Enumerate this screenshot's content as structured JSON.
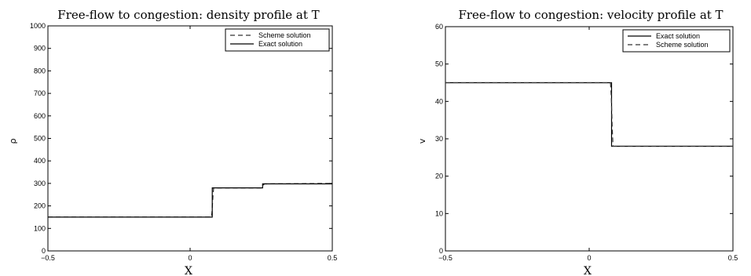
{
  "chart_data": [
    {
      "type": "line",
      "title": "Free-flow to congestion: density profile at T",
      "xlabel": "X",
      "ylabel": "ρ",
      "xlim": [
        -0.5,
        0.5
      ],
      "ylim": [
        0,
        1000
      ],
      "xticks": [
        "−0.5",
        "0",
        "0.5"
      ],
      "yticks": [
        "0",
        "100",
        "200",
        "300",
        "400",
        "500",
        "600",
        "700",
        "800",
        "900",
        "1000"
      ],
      "grid": false,
      "legend_position": "top-right",
      "series": [
        {
          "name": "Scheme solution",
          "style": "dashed",
          "color": "#333333",
          "x": [
            -0.5,
            0.075,
            0.077,
            0.079,
            0.081,
            0.083,
            0.25,
            0.254,
            0.258,
            0.262,
            0.5
          ],
          "y": [
            150,
            150,
            175,
            215,
            255,
            280,
            280,
            287,
            294,
            298,
            300
          ]
        },
        {
          "name": "Exact solution",
          "style": "solid",
          "color": "#000000",
          "x": [
            -0.5,
            0.078,
            0.078,
            0.255,
            0.255,
            0.5
          ],
          "y": [
            150,
            150,
            280,
            280,
            298,
            298
          ]
        }
      ]
    },
    {
      "type": "line",
      "title": "Free-flow to congestion: velocity profile at T",
      "xlabel": "X",
      "ylabel": "v",
      "xlim": [
        -0.5,
        0.5
      ],
      "ylim": [
        0,
        60
      ],
      "xticks": [
        "−0.5",
        "0",
        "0.5"
      ],
      "yticks": [
        "0",
        "10",
        "20",
        "30",
        "40",
        "50",
        "60"
      ],
      "grid": false,
      "legend_position": "top-right",
      "series": [
        {
          "name": "Exact solution",
          "style": "solid",
          "color": "#000000",
          "x": [
            -0.5,
            0.078,
            0.078,
            0.5
          ],
          "y": [
            45,
            45,
            28,
            28
          ]
        },
        {
          "name": "Scheme solution",
          "style": "dashed",
          "color": "#333333",
          "x": [
            -0.5,
            0.074,
            0.077,
            0.08,
            0.083,
            0.5
          ],
          "y": [
            45,
            45,
            41,
            33,
            28,
            28
          ]
        }
      ]
    }
  ]
}
